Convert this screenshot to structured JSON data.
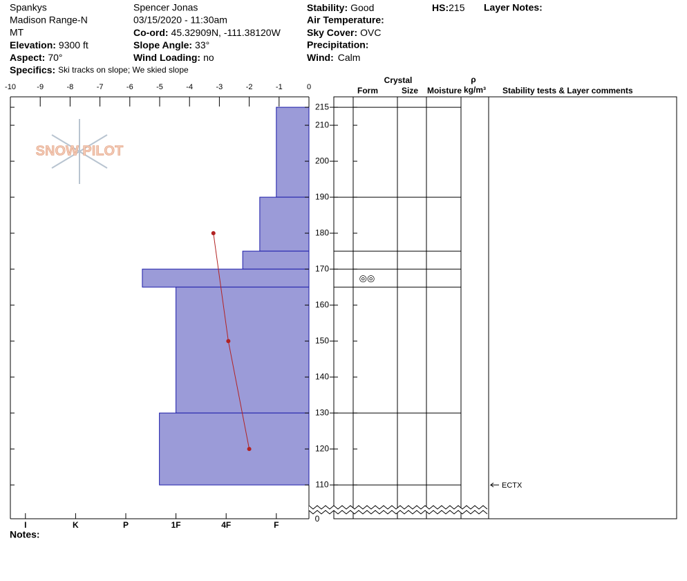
{
  "header": {
    "location": "Spankys",
    "range": "Madison Range-N",
    "state": "MT",
    "elevation": {
      "label": "Elevation:",
      "value": "9300 ft"
    },
    "aspect": {
      "label": "Aspect:",
      "value": "70°"
    },
    "specifics": {
      "label": "Specifics:",
      "value": "Ski tracks on slope; We skied slope"
    },
    "observer": "Spencer Jonas",
    "datetime": "03/15/2020 - 11:30am",
    "coord": {
      "label": "Co-ord:",
      "value": "45.32909N, -111.38120W"
    },
    "slope_angle": {
      "label": "Slope Angle:",
      "value": "33°"
    },
    "wind_loading": {
      "label": "Wind Loading:",
      "value": "no"
    },
    "stability": {
      "label": "Stability:",
      "value": "Good"
    },
    "air_temperature": {
      "label": "Air Temperature:"
    },
    "sky_cover": {
      "label": "Sky Cover:",
      "value": "OVC"
    },
    "precipitation": {
      "label": "Precipitation:"
    },
    "wind": {
      "label": "Wind:",
      "value": "Calm"
    },
    "hs": {
      "label": "HS:",
      "value": "215"
    },
    "layer_notes": "Layer Notes:",
    "notes": "Notes:"
  },
  "table_header": {
    "crystal": "Crystal",
    "form": "Form",
    "size": "Size",
    "moisture": "Moisture",
    "rho": "ρ",
    "density_unit": "kg/m³",
    "comments": "Stability tests & Layer comments"
  },
  "logo": "SNOW PILOT",
  "chart_data": {
    "type": "profile",
    "ylim": [
      100.6,
      217.9
    ],
    "yticks": [
      110,
      120,
      130,
      140,
      150,
      160,
      170,
      180,
      190,
      200,
      210,
      215
    ],
    "ground_label": "0",
    "xlim": [
      -10,
      0
    ],
    "xticks": [
      -10,
      -9,
      -8,
      -7,
      -6,
      -5,
      -4,
      -3,
      -2,
      -1,
      0
    ],
    "hardness_lim": [
      6.3,
      0.35
    ],
    "hardness_ticks": [
      {
        "value": 6,
        "label": "I"
      },
      {
        "value": 5,
        "label": "K"
      },
      {
        "value": 4,
        "label": "P"
      },
      {
        "value": 3,
        "label": "1F"
      },
      {
        "value": 2,
        "label": "4F"
      },
      {
        "value": 1,
        "label": "F"
      }
    ],
    "color": "#9b9bd8",
    "layers": {
      "top": [
        215,
        190,
        175,
        170,
        165,
        130
      ],
      "bottom": [
        190,
        175,
        170,
        165,
        130,
        110
      ],
      "hardness": [
        1,
        1.33,
        1.67,
        3.67,
        3,
        3.33
      ],
      "forms": [
        null,
        null,
        null,
        "◎◎",
        null,
        null
      ]
    },
    "temperature": {
      "heights": [
        180,
        150,
        120
      ],
      "values": [
        -3.2,
        -2.7,
        -2.0
      ],
      "color": "#b22222"
    },
    "tests": {
      "heights": [
        110
      ],
      "labels": [
        "ECTX"
      ]
    }
  }
}
